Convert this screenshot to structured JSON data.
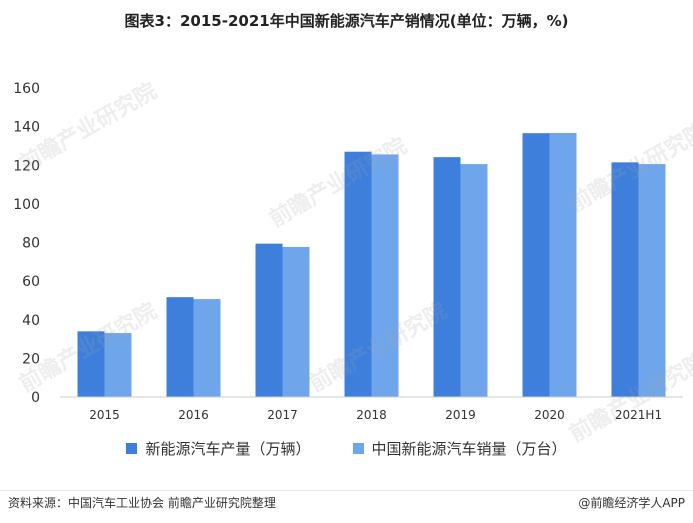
{
  "title": "图表3：2015-2021年中国新能源汽车产销情况(单位：万辆，%)",
  "source": "资料来源：中国汽车工业协会 前瞻产业研究院整理",
  "brand": "@前瞻经济学人APP",
  "watermark": "前瞻产业研究院",
  "colors": {
    "production": "#3f7fdc",
    "sales": "#6fa6eb"
  },
  "chart_data": {
    "type": "bar",
    "categories": [
      "2015",
      "2016",
      "2017",
      "2018",
      "2019",
      "2020",
      "2021H1"
    ],
    "series": [
      {
        "name": "新能源汽车产量（万辆）",
        "values": [
          34.0,
          51.7,
          79.4,
          127.0,
          124.2,
          136.6,
          121.5
        ]
      },
      {
        "name": "中国新能源汽车销量（万台）",
        "values": [
          33.1,
          50.7,
          77.7,
          125.6,
          120.6,
          136.7,
          120.6
        ]
      }
    ],
    "ylim": [
      0,
      160
    ],
    "yticks": [
      0,
      20,
      40,
      60,
      80,
      100,
      120,
      140,
      160
    ],
    "grid": false,
    "legend_position": "bottom"
  }
}
